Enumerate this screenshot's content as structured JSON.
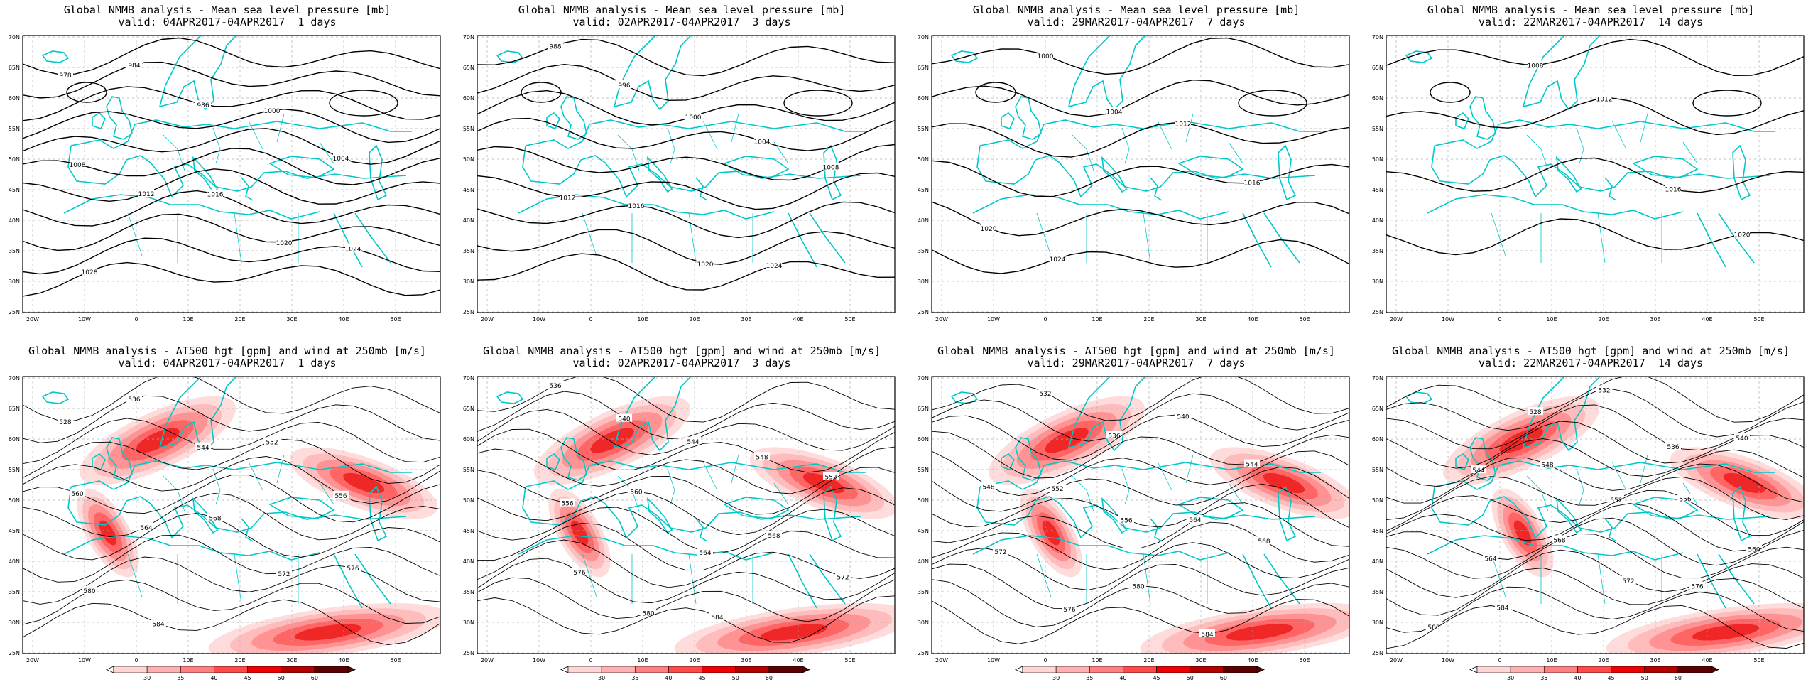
{
  "panels": [
    {
      "id": "mslp-1d",
      "kind": "mslp",
      "title1": "Global NMMB analysis - Mean sea level pressure [mb]",
      "title2": "valid: 04APR2017-04APR2017  1 days",
      "contour_labels": [
        "978",
        "984",
        "986",
        "1000",
        "1004",
        "1008",
        "1012",
        "1016",
        "1020",
        "1024",
        "1028"
      ]
    },
    {
      "id": "mslp-3d",
      "kind": "mslp",
      "title1": "Global NMMB analysis - Mean sea level pressure [mb]",
      "title2": "valid: 02APR2017-04APR2017  3 days",
      "contour_labels": [
        "988",
        "996",
        "1000",
        "1004",
        "1008",
        "1012",
        "1016",
        "1020",
        "1024"
      ]
    },
    {
      "id": "mslp-7d",
      "kind": "mslp",
      "title1": "Global NMMB analysis - Mean sea level pressure [mb]",
      "title2": "valid: 29MAR2017-04APR2017  7 days",
      "contour_labels": [
        "1000",
        "1004",
        "1012",
        "1016",
        "1020",
        "1024"
      ]
    },
    {
      "id": "mslp-14d",
      "kind": "mslp",
      "title1": "Global NMMB analysis - Mean sea level pressure [mb]",
      "title2": "valid: 22MAR2017-04APR2017  14 days",
      "contour_labels": [
        "1008",
        "1012",
        "1016",
        "1020"
      ]
    },
    {
      "id": "at500-1d",
      "kind": "at500",
      "title1": "Global NMMB analysis - AT500 hgt [gpm] and wind at 250mb [m/s]",
      "title2": "valid: 04APR2017-04APR2017  1 days",
      "contour_labels": [
        "528",
        "536",
        "544",
        "552",
        "556",
        "560",
        "564",
        "568",
        "572",
        "576",
        "580",
        "584"
      ]
    },
    {
      "id": "at500-3d",
      "kind": "at500",
      "title1": "Global NMMB analysis - AT500 hgt [gpm] and wind at 250mb [m/s]",
      "title2": "valid: 02APR2017-04APR2017  3 days",
      "contour_labels": [
        "536",
        "540",
        "544",
        "548",
        "552",
        "556",
        "560",
        "564",
        "568",
        "572",
        "576",
        "580",
        "584"
      ]
    },
    {
      "id": "at500-7d",
      "kind": "at500",
      "title1": "Global NMMB analysis - AT500 hgt [gpm] and wind at 250mb [m/s]",
      "title2": "valid: 29MAR2017-04APR2017  7 days",
      "contour_labels": [
        "532",
        "536",
        "540",
        "544",
        "548",
        "552",
        "556",
        "564",
        "568",
        "572",
        "576",
        "580",
        "584"
      ]
    },
    {
      "id": "at500-14d",
      "kind": "at500",
      "title1": "Global NMMB analysis - AT500 hgt [gpm] and wind at 250mb [m/s]",
      "title2": "valid: 22MAR2017-04APR2017  14 days",
      "contour_labels": [
        "528",
        "532",
        "536",
        "540",
        "544",
        "548",
        "552",
        "556",
        "560",
        "564",
        "568",
        "572",
        "576",
        "580",
        "584"
      ]
    }
  ],
  "lat_ticks": [
    "70N",
    "65N",
    "60N",
    "55N",
    "50N",
    "45N",
    "40N",
    "35N",
    "30N",
    "25N"
  ],
  "lon_ticks": [
    "20W",
    "10W",
    "0",
    "10E",
    "20E",
    "30E",
    "40E",
    "50E"
  ],
  "colorbar": {
    "ticks": [
      "30",
      "35",
      "40",
      "45",
      "50",
      "60"
    ],
    "colors": [
      "#ffd6d6",
      "#ffb0b0",
      "#ff8080",
      "#ff4a4a",
      "#ee0000",
      "#b00000",
      "#5a0000"
    ]
  },
  "colors": {
    "coast": "#00c8c8",
    "contour": "#000000",
    "grid": "#b0b0b0"
  }
}
